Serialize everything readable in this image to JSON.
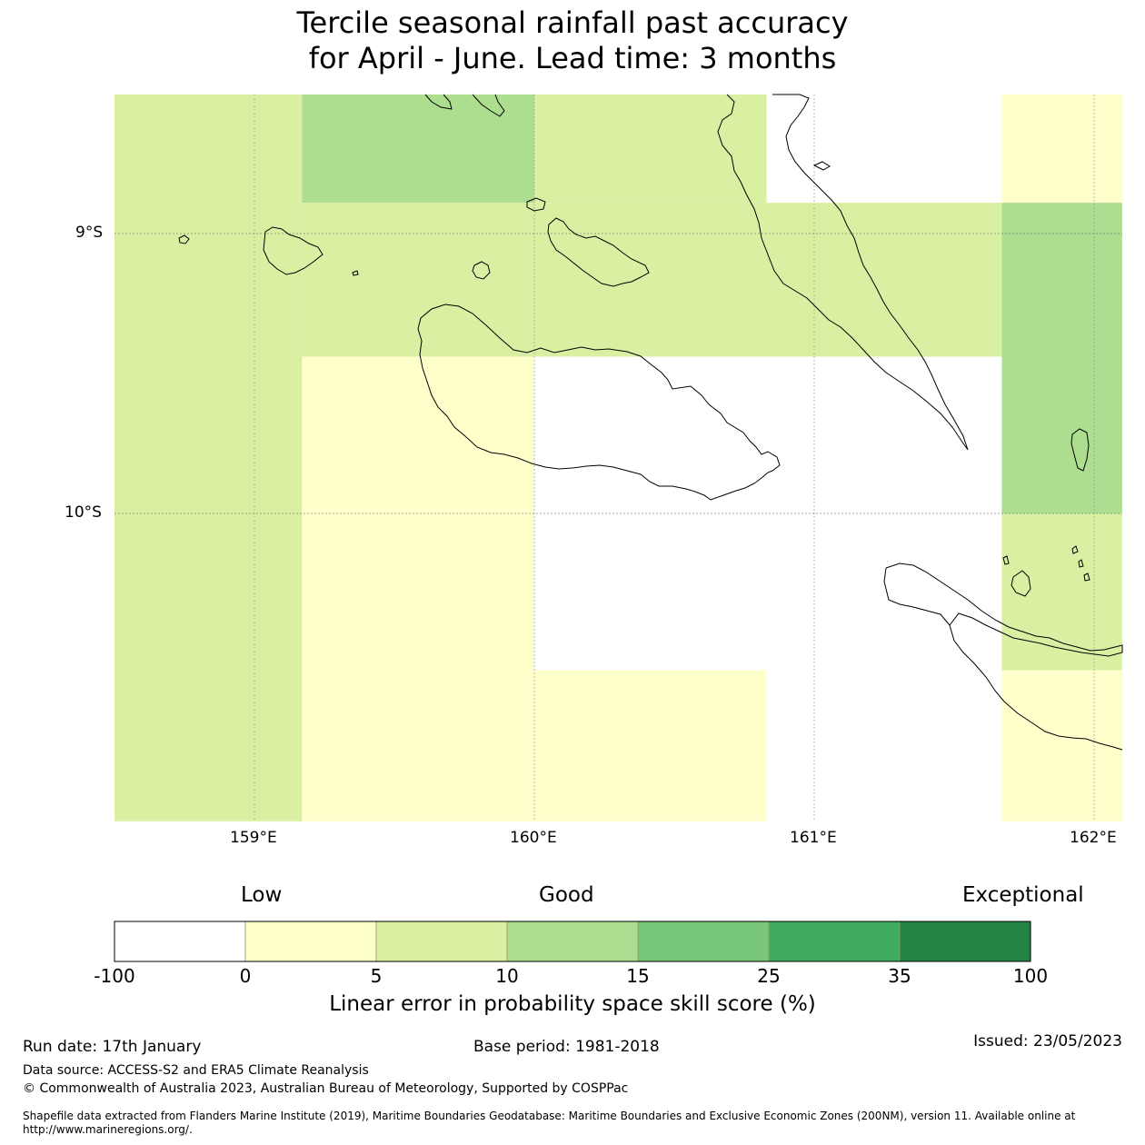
{
  "title": {
    "line1": "Tercile seasonal rainfall past accuracy",
    "line2": "for April - June. Lead time: 3 months"
  },
  "axes": {
    "lat_labels": [
      "9°S",
      "10°S"
    ],
    "lon_labels": [
      "159°E",
      "160°E",
      "161°E",
      "162°E"
    ]
  },
  "map_data": {
    "lon_range": [
      158.5,
      162.1
    ],
    "lat_range": [
      -8.5,
      -11.1
    ],
    "grid_cells": [
      {
        "lon": [
          158.5,
          159.17
        ],
        "lat": [
          -8.5,
          -11.1
        ],
        "category": "5-10"
      },
      {
        "lon": [
          159.17,
          160.0
        ],
        "lat": [
          -8.5,
          -8.89
        ],
        "category": "10-15"
      },
      {
        "lon": [
          160.0,
          160.83
        ],
        "lat": [
          -8.5,
          -8.89
        ],
        "category": "5-10"
      },
      {
        "lon": [
          160.83,
          161.67
        ],
        "lat": [
          -8.5,
          -8.89
        ],
        "category": "below-0"
      },
      {
        "lon": [
          161.67,
          162.1
        ],
        "lat": [
          -8.5,
          -8.89
        ],
        "category": "0-5"
      },
      {
        "lon": [
          159.17,
          161.67
        ],
        "lat": [
          -8.89,
          -9.44
        ],
        "category": "5-10"
      },
      {
        "lon": [
          161.67,
          162.1
        ],
        "lat": [
          -8.89,
          -10.0
        ],
        "category": "10-15"
      },
      {
        "lon": [
          159.17,
          160.0
        ],
        "lat": [
          -9.44,
          -11.1
        ],
        "category": "0-5"
      },
      {
        "lon": [
          160.0,
          161.67
        ],
        "lat": [
          -9.44,
          -10.56
        ],
        "category": "below-0"
      },
      {
        "lon": [
          161.67,
          162.1
        ],
        "lat": [
          -10.0,
          -10.56
        ],
        "category": "5-10"
      },
      {
        "lon": [
          160.0,
          160.83
        ],
        "lat": [
          -10.56,
          -11.1
        ],
        "category": "0-5"
      },
      {
        "lon": [
          160.83,
          161.67
        ],
        "lat": [
          -10.56,
          -11.1
        ],
        "category": "below-0"
      },
      {
        "lon": [
          161.67,
          162.1
        ],
        "lat": [
          -10.56,
          -11.1
        ],
        "category": "0-5"
      }
    ]
  },
  "colorbar": {
    "words": [
      "Low",
      "Good",
      "Exceptional"
    ],
    "ticks": [
      "-100",
      "0",
      "5",
      "10",
      "15",
      "25",
      "35",
      "100"
    ],
    "categories": [
      {
        "id": "below-0",
        "color": "#ffffff"
      },
      {
        "id": "0-5",
        "color": "#ffffcc"
      },
      {
        "id": "5-10",
        "color": "#d9f0a3"
      },
      {
        "id": "10-15",
        "color": "#addd8e"
      },
      {
        "id": "15-25",
        "color": "#78c679"
      },
      {
        "id": "25-35",
        "color": "#41ab5d"
      },
      {
        "id": "35-100",
        "color": "#238443"
      }
    ],
    "label": "Linear error in probability space skill score (%)"
  },
  "footer": {
    "run_date": "Run date: 17th January",
    "base_period": "Base period: 1981-2018",
    "issued": "Issued: 23/05/2023",
    "data_source": "Data source: ACCESS-S2 and ERA5 Climate Reanalysis",
    "copyright": "© Commonwealth of Australia 2023, Australian Bureau of Meteorology, Supported by COSPPac",
    "shapefile_line1": "Shapefile data extracted from Flanders Marine Institute (2019), Maritime Boundaries Geodatabase: Maritime Boundaries and Exclusive Economic Zones (200NM), version 11. Available online at",
    "shapefile_line2": "http://www.marineregions.org/."
  }
}
